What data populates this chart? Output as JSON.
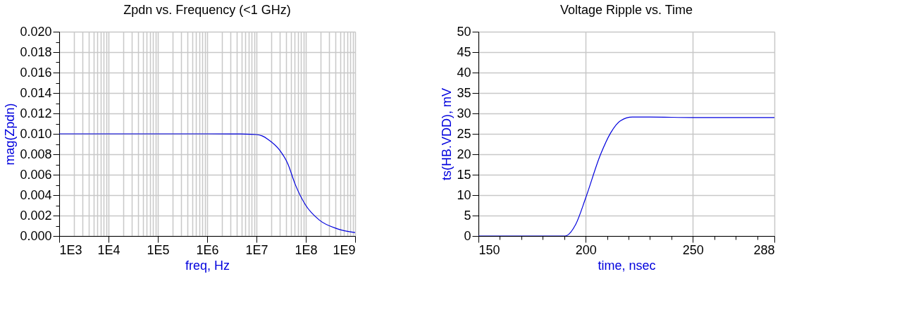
{
  "chart_data": [
    {
      "type": "line",
      "title": "Zpdn vs. Frequency (<1 GHz)",
      "xlabel": "freq, Hz",
      "ylabel": "mag(Zpdn)",
      "log": "x",
      "grid": true,
      "x": [
        1000,
        10000,
        100000,
        1000000,
        3000000,
        6000000,
        10000000,
        13000000,
        17000000,
        29500000,
        42700000,
        61700000,
        97700000,
        186000000,
        427000000,
        1000000000
      ],
      "series": [
        {
          "color": "#0000dd",
          "values": [
            0.01,
            0.01,
            0.01,
            0.01,
            0.00999,
            0.00998,
            0.00993,
            0.0098,
            0.00947,
            0.0084,
            0.00712,
            0.00499,
            0.00307,
            0.00158,
            0.00072,
            0.00034
          ]
        }
      ],
      "xlim": [
        1000,
        1000000000
      ],
      "xticks": [
        {
          "value": 1000,
          "label": "1E3"
        },
        {
          "value": 10000,
          "label": "1E4"
        },
        {
          "value": 100000,
          "label": "1E5"
        },
        {
          "value": 1000000,
          "label": "1E6"
        },
        {
          "value": 10000000,
          "label": "1E7"
        },
        {
          "value": 100000000,
          "label": "1E8"
        },
        {
          "value": 1000000000,
          "label": "1E9"
        }
      ],
      "ylim": [
        0,
        0.02
      ],
      "yticks": [
        {
          "value": 0,
          "label": "0.000"
        },
        {
          "value": 0.001,
          "label": null
        },
        {
          "value": 0.002,
          "label": "0.002"
        },
        {
          "value": 0.003,
          "label": null
        },
        {
          "value": 0.004,
          "label": "0.004"
        },
        {
          "value": 0.005,
          "label": null
        },
        {
          "value": 0.006,
          "label": "0.006"
        },
        {
          "value": 0.007,
          "label": null
        },
        {
          "value": 0.008,
          "label": "0.008"
        },
        {
          "value": 0.009,
          "label": null
        },
        {
          "value": 0.01,
          "label": "0.010"
        },
        {
          "value": 0.011,
          "label": null
        },
        {
          "value": 0.012,
          "label": "0.012"
        },
        {
          "value": 0.013,
          "label": null
        },
        {
          "value": 0.014,
          "label": "0.014"
        },
        {
          "value": 0.015,
          "label": null
        },
        {
          "value": 0.016,
          "label": "0.016"
        },
        {
          "value": 0.017,
          "label": null
        },
        {
          "value": 0.018,
          "label": "0.018"
        },
        {
          "value": 0.019,
          "label": null
        },
        {
          "value": 0.02,
          "label": "0.020"
        }
      ]
    },
    {
      "type": "line",
      "title": "Voltage Ripple vs. Time",
      "xlabel": "time, nsec",
      "ylabel": "ts(HB.VDD), mV",
      "grid": true,
      "x": [
        150,
        190.3,
        195.4,
        200,
        206.9,
        211.6,
        216.2,
        221.8,
        230,
        250,
        288
      ],
      "series": [
        {
          "color": "#0000dd",
          "values": [
            0,
            0,
            2.9,
            9.3,
            19.9,
            25.2,
            28.2,
            29.1,
            29.1,
            29,
            29
          ]
        }
      ],
      "xlim": [
        150,
        288
      ],
      "xticks": [
        150,
        {
          "value": 160,
          "label": null
        },
        {
          "value": 170,
          "label": null
        },
        {
          "value": 180,
          "label": null
        },
        {
          "value": 190,
          "label": null
        },
        200,
        {
          "value": 210,
          "label": null
        },
        {
          "value": 220,
          "label": null
        },
        {
          "value": 230,
          "label": null
        },
        {
          "value": 240,
          "label": null
        },
        250,
        {
          "value": 260,
          "label": null
        },
        {
          "value": 270,
          "label": null
        },
        {
          "value": 280,
          "label": null
        },
        288
      ],
      "ylim": [
        0,
        50
      ],
      "yticks": [
        0,
        5,
        10,
        15,
        20,
        25,
        30,
        35,
        40,
        45,
        50
      ]
    }
  ]
}
